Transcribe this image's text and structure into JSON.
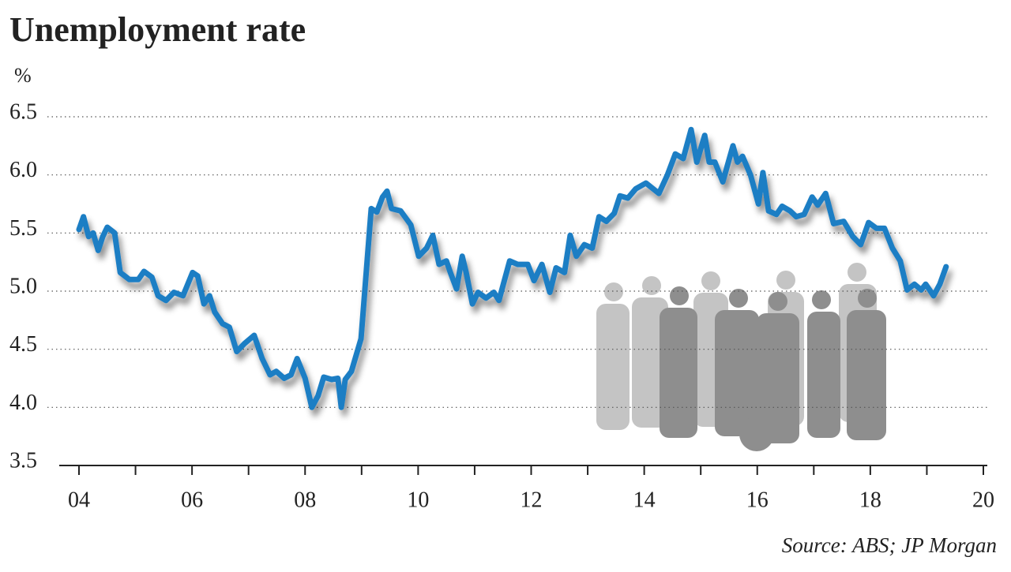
{
  "chart_data": {
    "type": "line",
    "title": "Unemployment rate",
    "y_label": "%",
    "source": "Source: ABS; JP Morgan",
    "x": [
      2004.0,
      2004.08,
      2004.17,
      2004.25,
      2004.34,
      2004.42,
      2004.5,
      2004.63,
      2004.73,
      2004.81,
      2004.89,
      2005.05,
      2005.15,
      2005.29,
      2005.4,
      2005.54,
      2005.68,
      2005.84,
      2006.01,
      2006.1,
      2006.21,
      2006.31,
      2006.4,
      2006.54,
      2006.66,
      2006.79,
      2006.93,
      2007.1,
      2007.24,
      2007.38,
      2007.49,
      2007.63,
      2007.75,
      2007.86,
      2008.0,
      2008.12,
      2008.23,
      2008.33,
      2008.47,
      2008.58,
      2008.64,
      2008.71,
      2008.82,
      2008.99,
      2009.17,
      2009.27,
      2009.37,
      2009.45,
      2009.53,
      2009.69,
      2009.87,
      2010.01,
      2010.15,
      2010.26,
      2010.37,
      2010.5,
      2010.57,
      2010.68,
      2010.78,
      2010.85,
      2010.96,
      2011.06,
      2011.2,
      2011.34,
      2011.43,
      2011.62,
      2011.76,
      2011.94,
      2012.05,
      2012.19,
      2012.33,
      2012.44,
      2012.59,
      2012.69,
      2012.8,
      2012.94,
      2013.08,
      2013.2,
      2013.33,
      2013.47,
      2013.57,
      2013.71,
      2013.85,
      2014.03,
      2014.26,
      2014.41,
      2014.55,
      2014.69,
      2014.83,
      2014.93,
      2015.07,
      2015.15,
      2015.25,
      2015.39,
      2015.57,
      2015.65,
      2015.74,
      2015.88,
      2016.02,
      2016.1,
      2016.2,
      2016.34,
      2016.44,
      2016.58,
      2016.69,
      2016.83,
      2016.97,
      2017.07,
      2017.21,
      2017.35,
      2017.53,
      2017.69,
      2017.83,
      2017.97,
      2018.11,
      2018.25,
      2018.39,
      2018.53,
      2018.65,
      2018.78,
      2018.9,
      2018.98,
      2019.12,
      2019.23,
      2019.34
    ],
    "series": [
      {
        "color": "#1f7ec4",
        "values": [
          5.53,
          5.64,
          5.47,
          5.5,
          5.35,
          5.47,
          5.55,
          5.5,
          5.16,
          5.13,
          5.1,
          5.1,
          5.17,
          5.12,
          4.96,
          4.92,
          4.99,
          4.96,
          5.16,
          5.13,
          4.89,
          4.96,
          4.82,
          4.72,
          4.69,
          4.48,
          4.55,
          4.62,
          4.42,
          4.28,
          4.31,
          4.25,
          4.28,
          4.42,
          4.25,
          4.0,
          4.1,
          4.26,
          4.24,
          4.25,
          4.0,
          4.24,
          4.31,
          4.59,
          5.71,
          5.68,
          5.81,
          5.86,
          5.71,
          5.69,
          5.57,
          5.3,
          5.37,
          5.48,
          5.23,
          5.26,
          5.16,
          5.02,
          5.3,
          5.16,
          4.89,
          4.99,
          4.94,
          4.99,
          4.92,
          5.26,
          5.23,
          5.23,
          5.09,
          5.23,
          4.99,
          5.2,
          5.16,
          5.48,
          5.3,
          5.4,
          5.37,
          5.64,
          5.6,
          5.67,
          5.82,
          5.8,
          5.88,
          5.93,
          5.84,
          6.0,
          6.18,
          6.14,
          6.39,
          6.11,
          6.34,
          6.11,
          6.11,
          5.94,
          6.25,
          6.11,
          6.16,
          6.0,
          5.75,
          6.02,
          5.69,
          5.66,
          5.73,
          5.69,
          5.64,
          5.66,
          5.81,
          5.74,
          5.84,
          5.58,
          5.6,
          5.47,
          5.4,
          5.59,
          5.54,
          5.54,
          5.37,
          5.26,
          5.01,
          5.06,
          5.01,
          5.06,
          4.96,
          5.06,
          5.21
        ]
      }
    ],
    "xlim": [
      2004,
      2020
    ],
    "xticks": [
      {
        "value": 2004,
        "label": "04"
      },
      {
        "value": 2006,
        "label": "06"
      },
      {
        "value": 2008,
        "label": "08"
      },
      {
        "value": 2010,
        "label": "10"
      },
      {
        "value": 2012,
        "label": "12"
      },
      {
        "value": 2014,
        "label": "14"
      },
      {
        "value": 2016,
        "label": "16"
      },
      {
        "value": 2018,
        "label": "18"
      },
      {
        "value": 2020,
        "label": "20"
      }
    ],
    "xminorticks": [
      2005,
      2007,
      2009,
      2011,
      2013,
      2015,
      2017,
      2019
    ],
    "ylim": [
      3.5,
      6.5
    ],
    "yticks": [
      3.5,
      {
        "value": 4,
        "label": "4.0"
      },
      4.5,
      {
        "value": 5,
        "label": "5.0"
      },
      5.5,
      {
        "value": 6,
        "label": "6.0"
      },
      6.5
    ],
    "grid": true
  }
}
